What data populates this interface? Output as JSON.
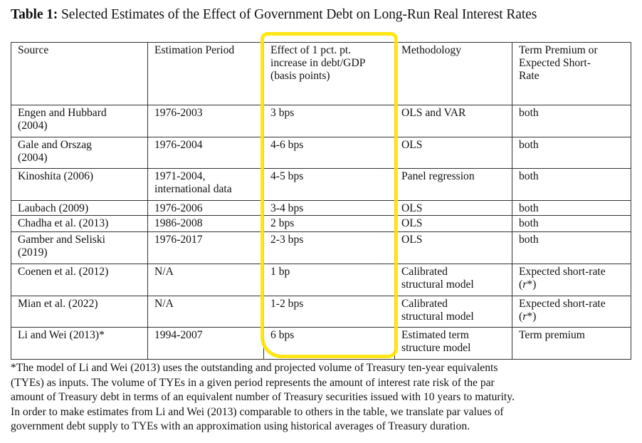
{
  "title": {
    "label": "Table 1:",
    "text": " Selected Estimates of the Effect of Government Debt on Long-Run Real Interest Rates"
  },
  "table": {
    "headers": [
      [
        "Source"
      ],
      [
        "Estimation Period"
      ],
      [
        "Effect of 1 pct. pt.",
        "increase in debt/GDP",
        "(basis points)"
      ],
      [
        "Methodology"
      ],
      [
        "Term Premium or",
        "Expected Short-",
        "Rate"
      ]
    ],
    "rows": [
      {
        "source": [
          "Engen and Hubbard",
          "(2004)"
        ],
        "period": [
          "1976-2003"
        ],
        "effect": "3 bps",
        "method": [
          "OLS and VAR"
        ],
        "term": [
          "both"
        ]
      },
      {
        "source": [
          "Gale and Orszag",
          "(2004)"
        ],
        "period": [
          "1976-2004"
        ],
        "effect": "4-6 bps",
        "method": [
          "OLS"
        ],
        "term": [
          "both"
        ]
      },
      {
        "source": [
          "Kinoshita (2006)"
        ],
        "period": [
          "1971-2004,",
          "international data"
        ],
        "effect": "4-5 bps",
        "method": [
          "Panel regression"
        ],
        "term": [
          "both"
        ]
      },
      {
        "source": [
          "Laubach (2009)"
        ],
        "period": [
          "1976-2006"
        ],
        "effect": "3-4 bps",
        "method": [
          "OLS"
        ],
        "term": [
          "both"
        ]
      },
      {
        "source": [
          "Chadha et al. (2013)"
        ],
        "period": [
          "1986-2008"
        ],
        "effect": "2 bps",
        "method": [
          "OLS"
        ],
        "term": [
          "both"
        ]
      },
      {
        "source": [
          "Gamber and Seliski",
          "(2019)"
        ],
        "period": [
          "1976-2017"
        ],
        "effect": "2-3 bps",
        "method": [
          "OLS"
        ],
        "term": [
          "both"
        ]
      },
      {
        "source": [
          "Coenen et al. (2012)"
        ],
        "period": [
          "N/A"
        ],
        "effect": "1 bp",
        "method": [
          "Calibrated",
          "structural model"
        ],
        "term": [
          "Expected short-rate",
          "(r*)"
        ]
      },
      {
        "source": [
          "Mian et al. (2022)"
        ],
        "period": [
          "N/A"
        ],
        "effect": "1-2 bps",
        "method": [
          "Calibrated",
          "structural model"
        ],
        "term": [
          "Expected short-rate",
          "(r*)"
        ]
      },
      {
        "source": [
          "Li and Wei (2013)*"
        ],
        "period": [
          "1994-2007"
        ],
        "effect": "6 bps",
        "method": [
          "Estimated term",
          "structure model"
        ],
        "term": [
          "Term premium"
        ]
      }
    ]
  },
  "footnote": {
    "lines": [
      "*The model of Li and Wei (2013) uses the outstanding and projected volume of Treasury ten-year equivalents",
      "(TYEs) as inputs.  The volume of TYEs in a given period represents the amount of interest rate risk of the par",
      "amount of Treasury debt in terms of an equivalent number of Treasury securities issued with 10 years to maturity.",
      "In order to make estimates from Li and Wei (2013) comparable to others in the table, we translate par values of",
      "government debt supply to TYEs with an approximation using historical averages of Treasury duration."
    ]
  },
  "highlight_color": "#ffe400"
}
